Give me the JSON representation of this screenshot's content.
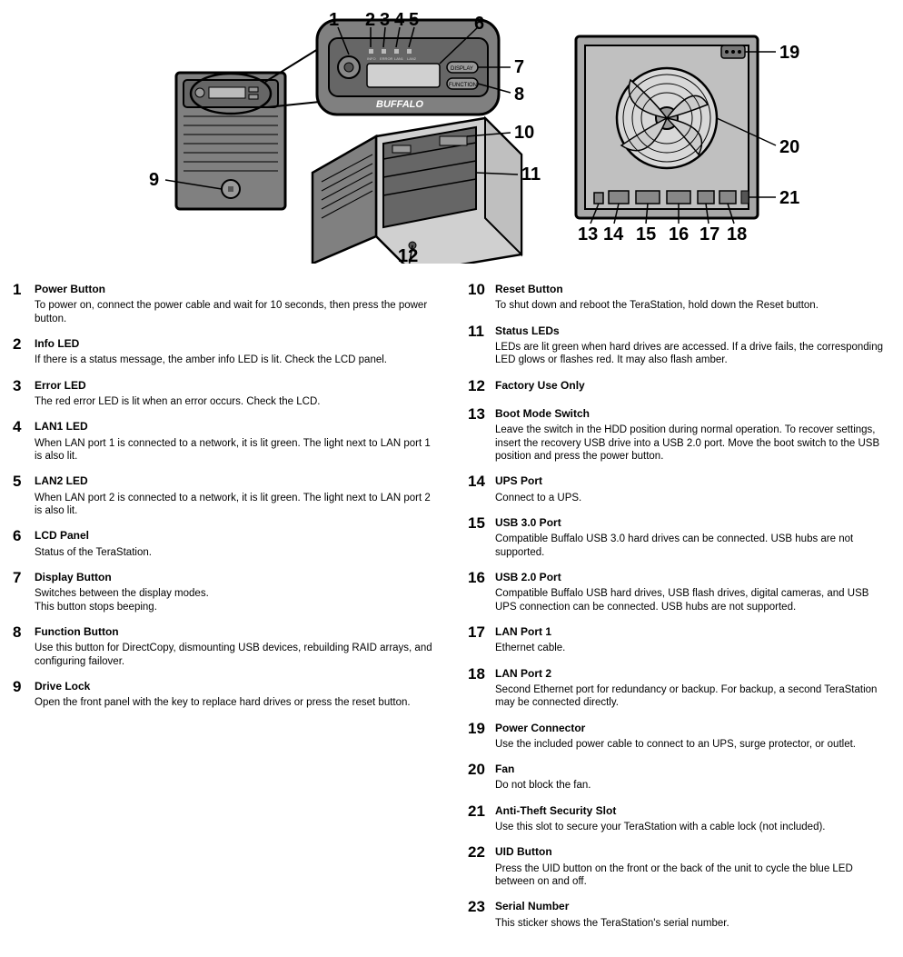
{
  "brand_label": "BUFFALO",
  "diagram": {
    "callout_font": 20,
    "callout_weight": 700,
    "stroke": "#000000",
    "fill_light": "#d0d0d0",
    "fill_dark": "#808080",
    "fill_darker": "#666666",
    "bg": "#ffffff"
  },
  "callouts_top": [
    "1",
    "2",
    "3",
    "4",
    "5",
    "6",
    "7",
    "8",
    "9",
    "10",
    "11",
    "12",
    "13",
    "14",
    "15",
    "16",
    "17",
    "18",
    "19",
    "20",
    "21"
  ],
  "legend_left": [
    {
      "n": "1",
      "title": "Power Button",
      "desc": "To power on, connect the power cable and wait for 10 seconds, then press the power button."
    },
    {
      "n": "2",
      "title": "Info LED",
      "desc": "If there is a status message, the amber info LED is lit. Check the LCD panel."
    },
    {
      "n": "3",
      "title": "Error LED",
      "desc": "The red error LED is lit when an error occurs. Check the LCD."
    },
    {
      "n": "4",
      "title": "LAN1 LED",
      "desc": "When LAN port 1 is connected to a network, it is lit green. The light next to LAN port 1 is also lit."
    },
    {
      "n": "5",
      "title": "LAN2 LED",
      "desc": "When LAN port 2 is connected to a network, it is lit green. The light next to LAN port 2 is also lit."
    },
    {
      "n": "6",
      "title": "LCD Panel",
      "desc": "Status of the TeraStation."
    },
    {
      "n": "7",
      "title": "Display Button",
      "desc": "Switches between the display modes.\nThis button stops beeping."
    },
    {
      "n": "8",
      "title": "Function Button",
      "desc": "Use this button for DirectCopy, dismounting USB devices, rebuilding RAID arrays, and configuring failover."
    },
    {
      "n": "9",
      "title": "Drive Lock",
      "desc": "Open the front panel with the key to replace hard drives or press the reset button."
    }
  ],
  "legend_right": [
    {
      "n": "10",
      "title": "Reset Button",
      "desc": "To shut down and reboot the TeraStation, hold down the Reset button."
    },
    {
      "n": "11",
      "title": "Status LEDs",
      "desc": "LEDs are lit green when hard drives are accessed. If a drive fails, the corresponding LED glows or flashes red. It may also flash amber."
    },
    {
      "n": "12",
      "title": "Factory Use Only",
      "desc": ""
    },
    {
      "n": "13",
      "title": "Boot Mode Switch",
      "desc": "Leave the switch in the HDD position during normal operation. To recover settings, insert the recovery USB drive into a USB 2.0 port. Move the boot switch to the USB position and press the power button."
    },
    {
      "n": "14",
      "title": "UPS Port",
      "desc": "Connect to a UPS."
    },
    {
      "n": "15",
      "title": "USB 3.0 Port",
      "desc": "Compatible Buffalo USB 3.0 hard drives can be connected. USB hubs are not supported."
    },
    {
      "n": "16",
      "title": "USB 2.0 Port",
      "desc": "Compatible Buffalo USB hard drives, USB flash drives, digital cameras, and USB UPS connection can be connected. USB hubs are not supported."
    },
    {
      "n": "17",
      "title": "LAN Port 1",
      "desc": "Ethernet cable."
    },
    {
      "n": "18",
      "title": "LAN Port 2",
      "desc": "Second Ethernet port for redundancy or backup. For backup, a second TeraStation may be connected directly."
    },
    {
      "n": "19",
      "title": "Power Connector",
      "desc": "Use the included power cable to connect to an UPS, surge protector, or outlet."
    },
    {
      "n": "20",
      "title": "Fan",
      "desc": "Do not block the fan."
    },
    {
      "n": "21",
      "title": "Anti-Theft Security Slot",
      "desc": "Use this slot to secure your TeraStation with a cable lock (not included)."
    },
    {
      "n": "22",
      "title": "UID Button",
      "desc": "Press the UID button on the front or the back of the unit to cycle the blue LED between on and off."
    },
    {
      "n": "23",
      "title": "Serial Number",
      "desc": "This sticker shows the TeraStation's serial number."
    }
  ]
}
